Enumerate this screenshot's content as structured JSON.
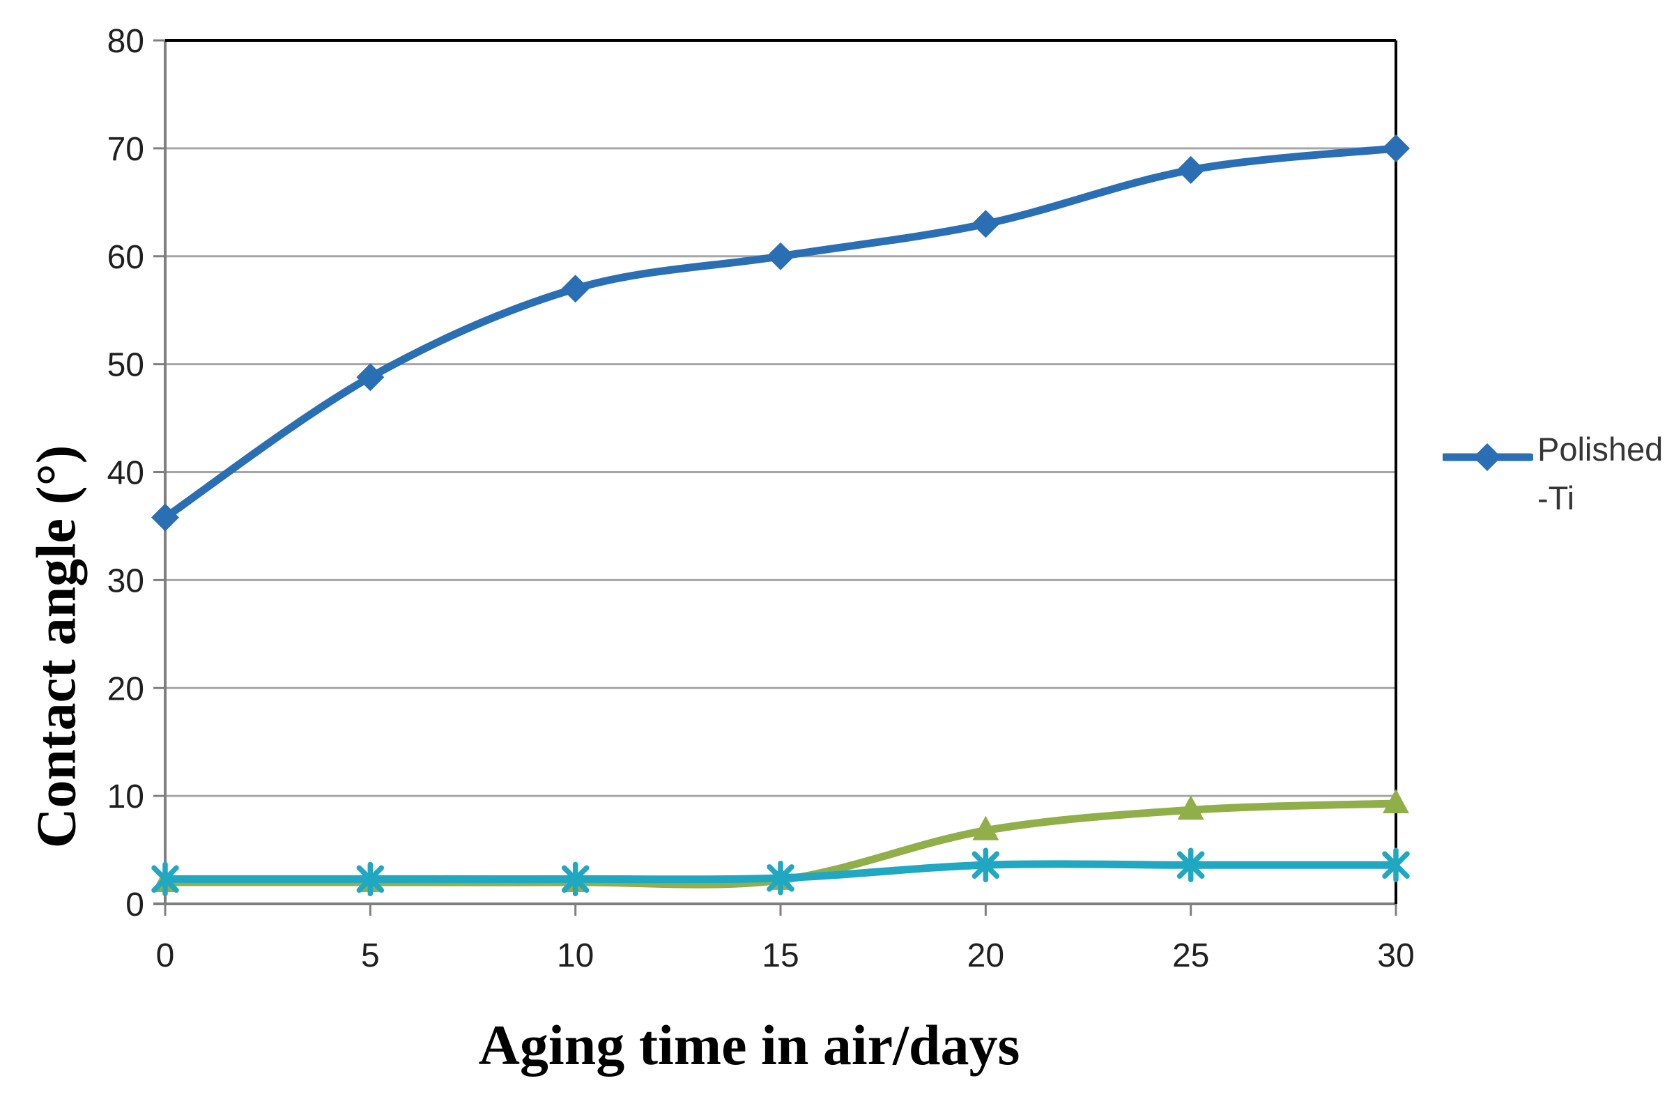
{
  "chart_data": {
    "type": "line",
    "title": "",
    "xlabel": "Aging time in air/days",
    "ylabel": "Contact angle (°)",
    "x": [
      0,
      5,
      10,
      15,
      20,
      25,
      30
    ],
    "x_tick_labels": [
      "0",
      "5",
      "10",
      "15",
      "20",
      "25",
      "30"
    ],
    "y_tick_labels": [
      "0",
      "10",
      "20",
      "30",
      "40",
      "50",
      "60",
      "70",
      "80"
    ],
    "y_tick_values": [
      0,
      10,
      20,
      30,
      40,
      50,
      60,
      70,
      80
    ],
    "xlim": [
      0,
      30
    ],
    "ylim": [
      0,
      80
    ],
    "grid": "horizontal",
    "legend_position": "right",
    "series": [
      {
        "id": "polished-ti",
        "legend_line1": "Polished",
        "legend_line2": "-Ti",
        "marker": "diamond",
        "color": "#2A6EB4",
        "smooth": true,
        "z": 3,
        "values": [
          35.8,
          48.8,
          57,
          60,
          63,
          68,
          70
        ]
      },
      {
        "id": "green-triangle-series",
        "marker": "triangle",
        "color": "#90AF49",
        "smooth": true,
        "z": 1,
        "values": [
          2,
          2,
          2,
          2.2,
          6.8,
          8.7,
          9.3
        ]
      },
      {
        "id": "teal-asterisk-series",
        "marker": "asterisk",
        "color": "#20A8C3",
        "smooth": true,
        "z": 2,
        "values": [
          2.3,
          2.3,
          2.3,
          2.4,
          3.6,
          3.6,
          3.6
        ]
      }
    ],
    "colors": {
      "gridline": "#A6A6A6",
      "axis": "#7F7F7F",
      "border": "#000000",
      "tick_text": "#1F1F1F"
    }
  },
  "legend": {
    "line1": "Polished",
    "line2": "-Ti"
  }
}
